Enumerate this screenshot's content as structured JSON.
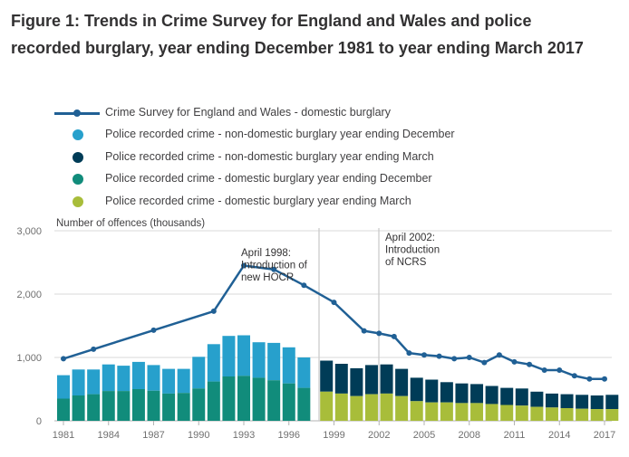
{
  "title": "Figure 1: Trends in Crime Survey for England and Wales and police recorded burglary, year ending December 1981 to year ending March 2017",
  "colors": {
    "csew": "#206095",
    "nondomestic_dec": "#27a0cc",
    "nondomestic_mar": "#003c57",
    "domestic_dec": "#118c7b",
    "domestic_mar": "#a8bd3a",
    "grid": "#d9d9d9",
    "axis_text": "#707070"
  },
  "chart_data": {
    "type": "bar",
    "title": "Figure 1: Trends in Crime Survey for England and Wales and police recorded burglary, year ending December 1981 to year ending March 2017",
    "ylabel": "Number of offences (thousands)",
    "xlabel": "",
    "ylim": [
      0,
      3000
    ],
    "yticks": [
      "0",
      "1,000",
      "2,000",
      "3,000"
    ],
    "xticks": [
      "1981",
      "1984",
      "1987",
      "1990",
      "1993",
      "1996",
      "1999",
      "2002",
      "2005",
      "2008",
      "2011",
      "2014",
      "2017"
    ],
    "legend": [
      "Crime Survey for England and Wales - domestic burglary",
      "Police recorded crime - non-domestic burglary year ending December",
      "Police recorded crime - non-domestic burglary year ending March",
      "Police recorded crime - domestic burglary year ending December",
      "Police recorded crime - domestic burglary year ending March"
    ],
    "bars_december": {
      "years": [
        1981,
        1982,
        1983,
        1984,
        1985,
        1986,
        1987,
        1988,
        1989,
        1990,
        1991,
        1992,
        1993,
        1994,
        1995,
        1996,
        1997
      ],
      "domestic": [
        350,
        400,
        420,
        470,
        470,
        500,
        475,
        430,
        440,
        510,
        620,
        700,
        710,
        680,
        640,
        590,
        520
      ],
      "total": [
        720,
        810,
        810,
        890,
        870,
        930,
        880,
        820,
        820,
        1010,
        1210,
        1340,
        1350,
        1240,
        1230,
        1160,
        1000
      ]
    },
    "bars_march": {
      "years": [
        1998.5,
        1999.5,
        2000.5,
        2001.5,
        2002.5,
        2003.5,
        2004.5,
        2005.5,
        2006.5,
        2007.5,
        2008.5,
        2009.5,
        2010.5,
        2011.5,
        2012.5,
        2013.5,
        2014.5,
        2015.5,
        2016.5,
        2017.5
      ],
      "domestic": [
        460,
        430,
        390,
        420,
        430,
        390,
        310,
        290,
        290,
        280,
        280,
        265,
        250,
        240,
        220,
        210,
        200,
        190,
        185,
        185
      ],
      "total": [
        950,
        900,
        830,
        880,
        890,
        820,
        680,
        650,
        610,
        590,
        580,
        550,
        520,
        510,
        460,
        430,
        420,
        410,
        400,
        410
      ]
    },
    "csew_line": {
      "x": [
        1981,
        1983,
        1987,
        1991,
        1993,
        1995,
        1997,
        1999,
        2001,
        2002,
        2003,
        2004,
        2005,
        2006,
        2007,
        2008,
        2009,
        2010,
        2011,
        2012,
        2013,
        2014,
        2015,
        2016,
        2017
      ],
      "y": [
        980,
        1130,
        1430,
        1730,
        2450,
        2390,
        2140,
        1870,
        1420,
        1380,
        1330,
        1070,
        1040,
        1020,
        980,
        1000,
        920,
        1040,
        930,
        890,
        800,
        800,
        710,
        660,
        660
      ]
    },
    "annotations": [
      {
        "lines": [
          "April 1998:",
          "Introduction of",
          "new HOCR"
        ]
      },
      {
        "lines": [
          "April 2002:",
          "Introduction",
          "of NCRS"
        ]
      }
    ]
  }
}
